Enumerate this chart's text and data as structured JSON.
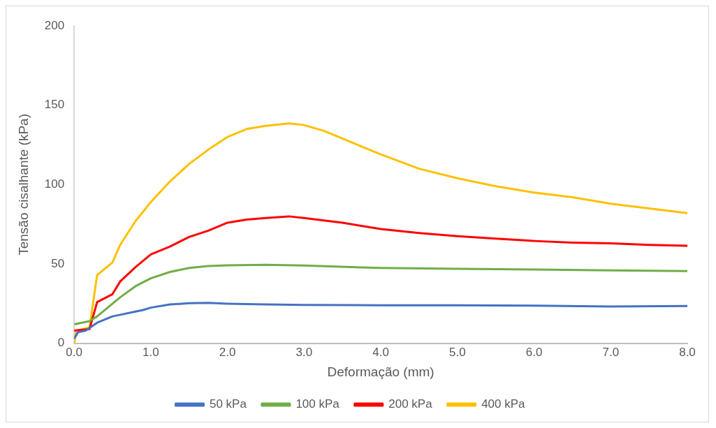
{
  "chart_data": {
    "type": "line",
    "xlabel": "Deformação (mm)",
    "ylabel": "Tensão cisalhante (kPa)",
    "xlim": [
      0,
      8
    ],
    "xticks": [
      {
        "value": 0,
        "label": "0.0"
      },
      {
        "value": 1,
        "label": "1.0"
      },
      {
        "value": 2,
        "label": "2.0"
      },
      {
        "value": 3,
        "label": "3.0"
      },
      {
        "value": 4,
        "label": "4.0"
      },
      {
        "value": 5,
        "label": "5.0"
      },
      {
        "value": 6,
        "label": "6.0"
      },
      {
        "value": 7,
        "label": "7.0"
      },
      {
        "value": 8,
        "label": "8.0"
      }
    ],
    "ylim": [
      0,
      200
    ],
    "yticks": [
      0,
      50,
      100,
      150,
      200
    ],
    "grid": false,
    "legend": "bottom",
    "marker": "none",
    "line_style": "solid",
    "series": [
      {
        "name": "50 kPa",
        "color": "#4472c4",
        "x": [
          0,
          0.05,
          0.15,
          0.3,
          0.5,
          0.6,
          0.8,
          0.9,
          1.0,
          1.25,
          1.5,
          1.75,
          2.0,
          2.5,
          3.0,
          4.0,
          5.0,
          6.0,
          7.0,
          8.0
        ],
        "values": [
          3,
          7,
          8,
          13,
          17,
          18,
          20,
          21,
          22.5,
          24.5,
          25.3,
          25.5,
          25,
          24.5,
          24.2,
          24,
          24,
          23.8,
          23.2,
          23.5
        ]
      },
      {
        "name": "100 kPa",
        "color": "#70ad47",
        "x": [
          0,
          0.2,
          0.3,
          0.5,
          0.6,
          0.8,
          1.0,
          1.25,
          1.5,
          1.75,
          2.0,
          2.5,
          3.0,
          4.0,
          5.0,
          6.0,
          7.0,
          8.0
        ],
        "values": [
          12,
          14,
          17,
          25,
          29,
          36,
          41,
          45,
          47.5,
          48.7,
          49.2,
          49.5,
          49,
          47.5,
          47,
          46.5,
          46,
          45.5
        ]
      },
      {
        "name": "200 kPa",
        "color": "#ff0000",
        "x": [
          0,
          0.2,
          0.3,
          0.5,
          0.6,
          0.8,
          1.0,
          1.25,
          1.5,
          1.75,
          2.0,
          2.25,
          2.5,
          2.8,
          3.0,
          3.5,
          4.0,
          4.5,
          5.0,
          5.5,
          6.0,
          6.5,
          7.0,
          7.5,
          8.0
        ],
        "values": [
          8,
          9,
          26,
          31,
          39,
          48,
          56,
          61,
          67,
          71,
          76,
          78,
          79,
          80,
          79,
          76,
          72,
          69.5,
          67.5,
          66,
          64.5,
          63.5,
          63,
          62,
          61.5
        ]
      },
      {
        "name": "400 kPa",
        "color": "#ffc000",
        "x": [
          0,
          0.03,
          0.2,
          0.3,
          0.5,
          0.6,
          0.8,
          1.0,
          1.25,
          1.5,
          1.75,
          2.0,
          2.25,
          2.5,
          2.8,
          3.0,
          3.25,
          3.5,
          4.0,
          4.5,
          5.0,
          5.5,
          6.0,
          6.5,
          7.0,
          7.5,
          8.0
        ],
        "values": [
          0,
          8,
          10,
          43,
          51,
          62,
          77,
          89,
          102,
          113,
          122,
          130,
          135,
          137,
          138.5,
          137.5,
          134,
          129,
          119,
          110,
          104,
          99,
          95,
          92,
          88,
          85,
          82
        ]
      }
    ]
  }
}
